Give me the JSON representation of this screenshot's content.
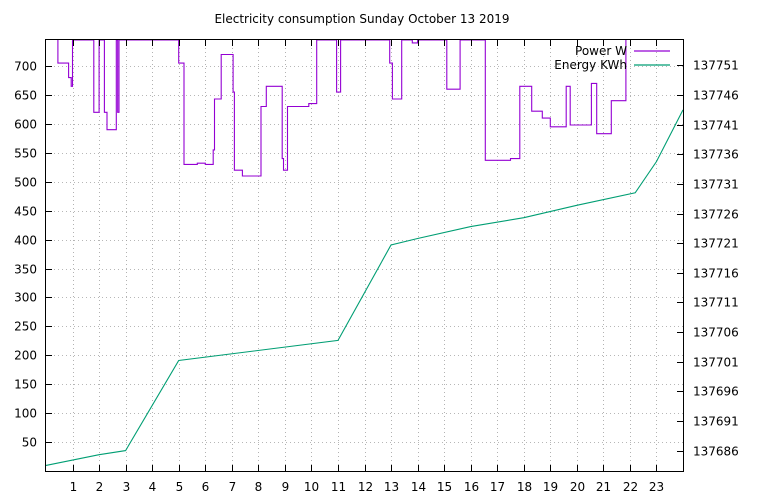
{
  "chart_data": {
    "type": "line",
    "title": "Electricity consumption Sunday October 13 2019",
    "xlabel": "",
    "ylabel": "",
    "y2label": "",
    "xlim": [
      0,
      24
    ],
    "ylim": [
      0,
      745
    ],
    "y2lim": [
      137682.55,
      137755.3
    ],
    "x_ticks": [
      1,
      2,
      3,
      4,
      5,
      6,
      7,
      8,
      9,
      10,
      11,
      12,
      13,
      14,
      15,
      16,
      17,
      18,
      19,
      20,
      21,
      22,
      23
    ],
    "y_ticks": [
      50,
      100,
      150,
      200,
      250,
      300,
      350,
      400,
      450,
      500,
      550,
      600,
      650,
      700
    ],
    "y2_ticks": [
      137686,
      137691,
      137696,
      137701,
      137706,
      137711,
      137716,
      137721,
      137726,
      137731,
      137736,
      137741,
      137746,
      137751
    ],
    "grid": true,
    "legend_position": "top-right",
    "series": [
      {
        "name": "Power W",
        "axis": "left",
        "step": true,
        "color": "#9400d3",
        "points": [
          [
            0.45,
            745
          ],
          [
            0.45,
            705
          ],
          [
            0.85,
            705
          ],
          [
            0.85,
            680
          ],
          [
            0.95,
            680
          ],
          [
            0.95,
            665
          ],
          [
            1.0,
            665
          ],
          [
            1.0,
            745
          ],
          [
            1.8,
            745
          ],
          [
            1.8,
            620
          ],
          [
            2.0,
            620
          ],
          [
            2.0,
            745
          ],
          [
            2.2,
            745
          ],
          [
            2.2,
            620
          ],
          [
            2.3,
            620
          ],
          [
            2.3,
            590
          ],
          [
            2.65,
            590
          ],
          [
            2.65,
            745
          ],
          [
            2.7,
            745
          ],
          [
            2.7,
            620
          ],
          [
            2.75,
            620
          ],
          [
            2.75,
            745
          ],
          [
            5.0,
            745
          ],
          [
            5.0,
            705
          ],
          [
            5.2,
            705
          ],
          [
            5.2,
            530
          ],
          [
            5.7,
            530
          ],
          [
            5.7,
            532
          ],
          [
            6.0,
            532
          ],
          [
            6.0,
            530
          ],
          [
            6.3,
            530
          ],
          [
            6.3,
            555
          ],
          [
            6.35,
            555
          ],
          [
            6.35,
            643
          ],
          [
            6.6,
            643
          ],
          [
            6.6,
            720
          ],
          [
            7.05,
            720
          ],
          [
            7.05,
            655
          ],
          [
            7.1,
            655
          ],
          [
            7.1,
            520
          ],
          [
            7.4,
            520
          ],
          [
            7.4,
            510
          ],
          [
            8.1,
            510
          ],
          [
            8.1,
            630
          ],
          [
            8.3,
            630
          ],
          [
            8.3,
            665
          ],
          [
            8.9,
            665
          ],
          [
            8.9,
            540
          ],
          [
            8.95,
            540
          ],
          [
            8.95,
            520
          ],
          [
            9.1,
            520
          ],
          [
            9.1,
            630
          ],
          [
            9.9,
            630
          ],
          [
            9.9,
            635
          ],
          [
            10.2,
            635
          ],
          [
            10.2,
            745
          ],
          [
            10.95,
            745
          ],
          [
            10.95,
            655
          ],
          [
            11.1,
            655
          ],
          [
            11.1,
            745
          ],
          [
            12.95,
            745
          ],
          [
            12.95,
            705
          ],
          [
            13.05,
            705
          ],
          [
            13.05,
            643
          ],
          [
            13.4,
            643
          ],
          [
            13.4,
            745
          ],
          [
            13.8,
            745
          ],
          [
            13.8,
            740
          ],
          [
            14.0,
            740
          ],
          [
            14.0,
            745
          ],
          [
            15.1,
            745
          ],
          [
            15.1,
            660
          ],
          [
            15.6,
            660
          ],
          [
            15.6,
            745
          ],
          [
            16.55,
            745
          ],
          [
            16.55,
            537
          ],
          [
            17.5,
            537
          ],
          [
            17.5,
            540
          ],
          [
            17.85,
            540
          ],
          [
            17.85,
            665
          ],
          [
            18.3,
            665
          ],
          [
            18.3,
            622
          ],
          [
            18.7,
            622
          ],
          [
            18.7,
            610
          ],
          [
            19.0,
            610
          ],
          [
            19.0,
            595
          ],
          [
            19.6,
            595
          ],
          [
            19.6,
            665
          ],
          [
            19.75,
            665
          ],
          [
            19.75,
            598
          ],
          [
            20.55,
            598
          ],
          [
            20.55,
            670
          ],
          [
            20.75,
            670
          ],
          [
            20.75,
            583
          ],
          [
            21.3,
            583
          ],
          [
            21.3,
            640
          ],
          [
            21.85,
            640
          ],
          [
            21.85,
            745
          ]
        ]
      },
      {
        "name": "Energy KWh",
        "axis": "right",
        "step": false,
        "color": "#009e73",
        "points": [
          [
            0.0,
            137683.5
          ],
          [
            2.0,
            137685.3
          ],
          [
            3.0,
            137686.0
          ],
          [
            5.0,
            137701.2
          ],
          [
            11.0,
            137704.6
          ],
          [
            13.0,
            137720.7
          ],
          [
            14.0,
            137721.8
          ],
          [
            16.0,
            137723.8
          ],
          [
            18.0,
            137725.3
          ],
          [
            20.0,
            137727.4
          ],
          [
            22.2,
            137729.5
          ],
          [
            23.0,
            137734.8
          ],
          [
            24.0,
            137743.5
          ]
        ]
      }
    ]
  }
}
